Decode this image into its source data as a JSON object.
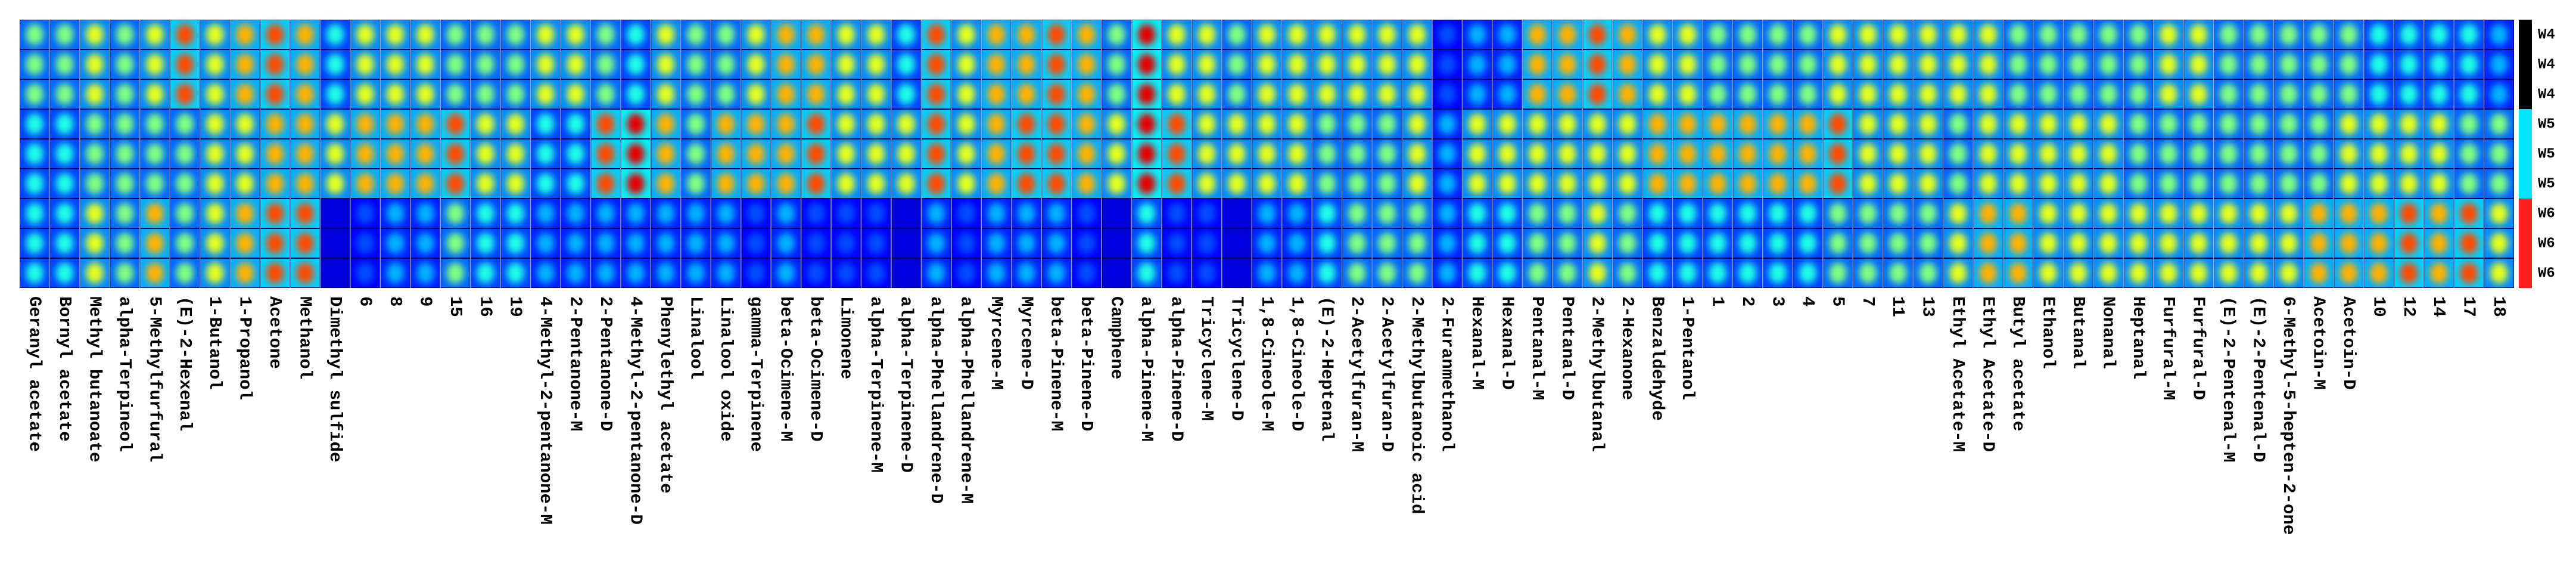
{
  "chart_data": {
    "type": "heatmap",
    "categories": [
      "Geranyl acetate",
      "Bornyl acetate",
      "Methyl butanoate",
      "alpha-Terpineol",
      "5-Methylfurfural",
      "(E)-2-Hexenal",
      "1-Butanol",
      "1-Propanol",
      "Acetone",
      "Methanol",
      "Dimethyl sulfide",
      "6",
      "8",
      "9",
      "15",
      "16",
      "19",
      "4-Methyl-2-pentanone-M",
      "2-Pentanone-M",
      "2-Pentanone-D",
      "4-Methyl-2-pentanone-D",
      "Phenylethyl acetate",
      "Linalool",
      "Linalool oxide",
      "gamma-Terpinene",
      "beta-Ocimene-M",
      "beta-Ocimene-D",
      "Limonene",
      "alpha-Terpinene-M",
      "alpha-Terpinene-D",
      "alpha-Phellandrene-D",
      "alpha-Phellandrene-M",
      "Myrcene-M",
      "Myrcene-D",
      "beta-Pinene-M",
      "beta-Pinene-D",
      "Camphene",
      "alpha-Pinene-M",
      "alpha-Pinene-D",
      "Tricyclene-M",
      "Tricyclene-D",
      "1,8-Cineole-M",
      "1,8-Cineole-D",
      "(E)-2-Heptenal",
      "2-Acetylfuran-M",
      "2-Acetylfuran-D",
      "2-Methylbutanoic acid",
      "2-Furanmethanol",
      "Hexanal-M",
      "Hexanal-D",
      "Pentanal-M",
      "Pentanal-D",
      "2-Methylbutanal",
      "2-Hexanone",
      "Benzaldehyde",
      "1-Pentanol",
      "1",
      "2",
      "3",
      "4",
      "5",
      "7",
      "11",
      "13",
      "Ethyl Acetate-M",
      "Ethyl Acetate-D",
      "Butyl acetate",
      "Ethanol",
      "Butanal",
      "Nonanal",
      "Heptanal",
      "Furfural-M",
      "Furfural-D",
      "(E)-2-Pentenal-M",
      "(E)-2-Pentenal-D",
      "6-Methyl-5-hepten-2-one",
      "Acetoin-M",
      "Acetoin-D",
      "10",
      "12",
      "14",
      "17",
      "18"
    ],
    "groups": [
      {
        "name": "W4",
        "color": "#000000",
        "values": [
          5,
          5,
          6,
          5,
          6,
          8,
          6,
          7,
          8,
          7,
          4,
          6,
          6,
          6,
          5,
          5,
          5,
          6,
          6,
          5,
          4,
          6,
          5,
          5,
          6,
          7,
          7,
          6,
          6,
          4,
          8,
          6,
          7,
          7,
          8,
          7,
          5,
          9,
          6,
          6,
          5,
          6,
          6,
          6,
          6,
          6,
          6,
          2,
          3,
          3,
          7,
          7,
          8,
          7,
          6,
          6,
          5,
          5,
          5,
          5,
          6,
          6,
          6,
          6,
          6,
          6,
          5,
          5,
          5,
          5,
          5,
          6,
          6,
          5,
          5,
          5,
          5,
          5,
          4,
          4,
          4,
          4,
          3
        ]
      },
      {
        "name": "W5",
        "color": "#00e5ff",
        "values": [
          4,
          4,
          5,
          5,
          5,
          5,
          6,
          6,
          7,
          7,
          6,
          7,
          7,
          7,
          8,
          6,
          6,
          4,
          4,
          8,
          9,
          7,
          5,
          7,
          7,
          7,
          8,
          6,
          6,
          6,
          8,
          6,
          7,
          8,
          8,
          7,
          6,
          9,
          8,
          6,
          6,
          6,
          6,
          5,
          5,
          5,
          6,
          3,
          6,
          6,
          6,
          6,
          6,
          6,
          7,
          7,
          7,
          7,
          7,
          7,
          8,
          6,
          6,
          6,
          5,
          6,
          6,
          6,
          6,
          6,
          5,
          5,
          5,
          5,
          5,
          5,
          5,
          6,
          6,
          6,
          6,
          5,
          5
        ]
      },
      {
        "name": "W6",
        "color": "#ff2020",
        "values": [
          4,
          4,
          6,
          5,
          7,
          5,
          6,
          7,
          8,
          8,
          1,
          2,
          3,
          3,
          5,
          4,
          4,
          3,
          3,
          3,
          3,
          3,
          3,
          3,
          2,
          3,
          2,
          2,
          2,
          1,
          3,
          2,
          3,
          3,
          3,
          2,
          1,
          4,
          2,
          2,
          1,
          3,
          3,
          4,
          5,
          5,
          5,
          3,
          4,
          4,
          5,
          5,
          6,
          5,
          4,
          4,
          4,
          4,
          4,
          4,
          5,
          5,
          5,
          5,
          6,
          7,
          7,
          6,
          6,
          6,
          6,
          6,
          6,
          6,
          6,
          6,
          7,
          7,
          7,
          8,
          7,
          8,
          6
        ]
      }
    ],
    "rows_per_group": 3,
    "zlim": [
      0,
      10
    ]
  }
}
